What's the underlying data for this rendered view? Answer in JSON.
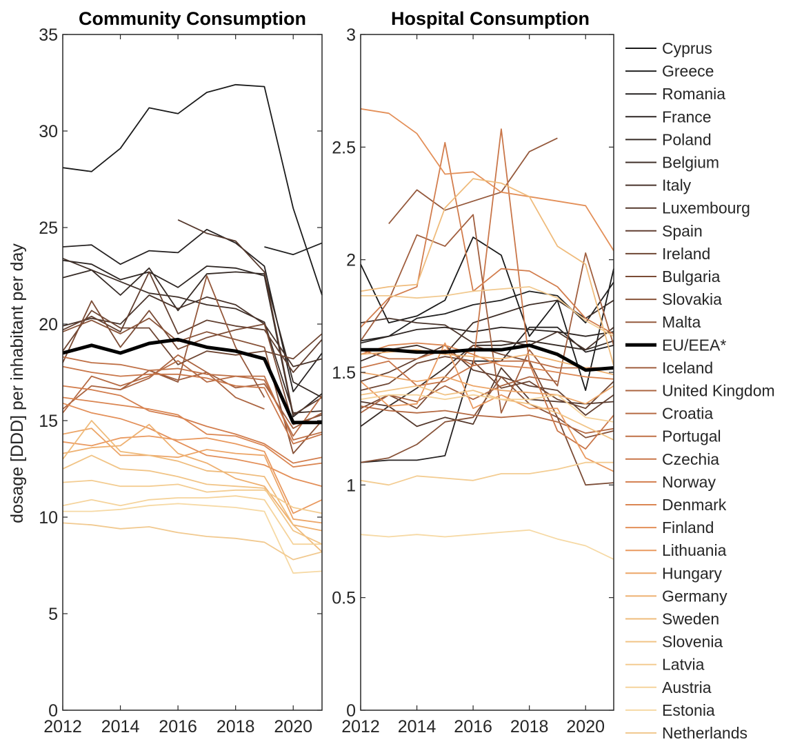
{
  "ylabel": "dosage [DDD] per inhabitant per day",
  "chart_data": [
    {
      "type": "line",
      "title": "Community Consumption",
      "xlabel": "",
      "ylabel": "dosage [DDD] per inhabitant per day",
      "x": [
        2012,
        2013,
        2014,
        2015,
        2016,
        2017,
        2018,
        2019,
        2020,
        2021
      ],
      "xlim": [
        2012,
        2021
      ],
      "ylim": [
        0,
        35
      ],
      "xticks": [
        2012,
        2014,
        2016,
        2018,
        2020
      ],
      "yticks": [
        0,
        5,
        10,
        15,
        20,
        25,
        30,
        35
      ],
      "grid": false,
      "series": [
        {
          "name": "Cyprus",
          "values": [
            28.1,
            27.9,
            29.1,
            31.2,
            30.9,
            32.0,
            32.4,
            32.3,
            26.0,
            21.5
          ]
        },
        {
          "name": "Greece",
          "values": [
            null,
            null,
            null,
            null,
            null,
            null,
            null,
            24.0,
            23.6,
            24.2
          ]
        },
        {
          "name": "Romania",
          "values": [
            24.0,
            24.1,
            23.1,
            23.8,
            23.7,
            24.9,
            24.2,
            23.0,
            16.5,
            18.5
          ]
        },
        {
          "name": "France",
          "values": [
            23.3,
            23.1,
            22.3,
            22.7,
            21.9,
            23.0,
            22.9,
            22.5,
            15.2,
            16.4
          ]
        },
        {
          "name": "Poland",
          "values": [
            22.4,
            22.8,
            21.5,
            22.9,
            20.7,
            22.6,
            22.7,
            22.6,
            17.0,
            16.2
          ]
        },
        {
          "name": "Belgium",
          "values": [
            23.4,
            22.8,
            22.2,
            21.6,
            21.4,
            21.0,
            20.8,
            20.1,
            15.4,
            15.5
          ]
        },
        {
          "name": "Italy",
          "values": [
            19.9,
            20.3,
            20.0,
            21.5,
            20.8,
            21.4,
            21.0,
            20.0,
            17.8,
            18.2
          ]
        },
        {
          "name": "Luxembourg",
          "values": [
            null,
            null,
            null,
            null,
            25.4,
            24.7,
            24.3,
            22.7,
            15.3,
            16.2
          ]
        },
        {
          "name": "Spain",
          "values": [
            19.7,
            20.4,
            19.6,
            22.7,
            19.5,
            20.2,
            19.9,
            19.7,
            17.5,
            19.2
          ]
        },
        {
          "name": "Ireland",
          "values": [
            18.6,
            20.7,
            19.8,
            19.8,
            17.9,
            18.6,
            18.4,
            18.6,
            18.2,
            19.5
          ]
        },
        {
          "name": "Bulgaria",
          "values": [
            18.0,
            21.2,
            18.8,
            20.7,
            18.7,
            19.3,
            19.7,
            20.0,
            14.8,
            15.3
          ]
        },
        {
          "name": "Slovakia",
          "values": [
            19.6,
            20.2,
            19.5,
            20.3,
            19.1,
            19.6,
            19.2,
            18.8,
            13.3,
            15.0
          ]
        },
        {
          "name": "Malta",
          "values": [
            null,
            null,
            null,
            17.6,
            17.0,
            22.5,
            18.8,
            16.2,
            null,
            null
          ]
        },
        {
          "name": "EU/EEA*",
          "values": [
            18.5,
            18.9,
            18.5,
            19.0,
            19.2,
            18.8,
            18.6,
            18.2,
            14.9,
            14.9
          ]
        },
        {
          "name": "Iceland",
          "values": [
            null,
            null,
            16.6,
            17.6,
            17.1,
            17.5,
            16.7,
            16.9,
            14.6,
            15.4
          ]
        },
        {
          "name": "United Kingdom",
          "values": [
            15.6,
            16.8,
            16.6,
            17.2,
            18.4,
            17.5,
            16.2,
            15.6,
            null,
            null
          ]
        },
        {
          "name": "Croatia",
          "values": [
            15.4,
            17.3,
            16.8,
            17.3,
            18.1,
            17.0,
            17.3,
            17.1,
            14.2,
            16.3
          ]
        },
        {
          "name": "Portugal",
          "values": [
            18.3,
            18.0,
            17.9,
            17.6,
            17.7,
            17.4,
            17.3,
            17.3,
            14.0,
            14.4
          ]
        },
        {
          "name": "Czechia",
          "values": [
            17.8,
            17.5,
            17.3,
            17.4,
            17.4,
            17.2,
            16.8,
            16.7,
            13.8,
            14.3
          ]
        },
        {
          "name": "Norway",
          "values": [
            16.8,
            16.6,
            16.3,
            15.5,
            15.2,
            14.7,
            14.3,
            13.8,
            12.8,
            13.1
          ]
        },
        {
          "name": "Denmark",
          "values": [
            16.2,
            16.0,
            15.8,
            15.6,
            15.3,
            14.3,
            14.2,
            13.7,
            12.6,
            12.8
          ]
        },
        {
          "name": "Finland",
          "values": [
            15.9,
            15.4,
            15.1,
            14.6,
            13.9,
            13.2,
            13.0,
            12.7,
            12.0,
            11.6
          ]
        },
        {
          "name": "Lithuania",
          "values": [
            13.9,
            13.7,
            14.1,
            14.2,
            14.0,
            14.1,
            13.8,
            13.4,
            10.2,
            10.9
          ]
        },
        {
          "name": "Hungary",
          "values": [
            14.3,
            14.6,
            13.2,
            13.2,
            13.1,
            13.5,
            13.3,
            13.2,
            9.9,
            9.7
          ]
        },
        {
          "name": "Germany",
          "values": [
            13.3,
            13.6,
            13.7,
            14.8,
            13.3,
            12.8,
            12.0,
            11.6,
            9.6,
            9.3
          ]
        },
        {
          "name": "Sweden",
          "values": [
            13.0,
            15.0,
            13.4,
            13.2,
            12.9,
            12.4,
            12.3,
            12.1,
            9.6,
            8.2
          ]
        },
        {
          "name": "Slovenia",
          "values": [
            12.5,
            13.2,
            12.5,
            12.4,
            12.1,
            11.7,
            11.6,
            11.5,
            9.3,
            8.6
          ]
        },
        {
          "name": "Latvia",
          "values": [
            11.8,
            11.9,
            11.6,
            11.6,
            11.7,
            11.3,
            11.4,
            11.4,
            10.5,
            10.2
          ]
        },
        {
          "name": "Austria",
          "values": [
            10.6,
            10.9,
            10.6,
            10.9,
            11.0,
            11.0,
            11.1,
            10.9,
            8.6,
            8.6
          ]
        },
        {
          "name": "Estonia",
          "values": [
            10.3,
            10.3,
            10.4,
            10.6,
            10.7,
            10.6,
            10.5,
            10.3,
            7.1,
            7.2
          ]
        },
        {
          "name": "Netherlands",
          "values": [
            9.7,
            9.6,
            9.4,
            9.5,
            9.2,
            9.0,
            8.9,
            8.7,
            7.8,
            8.2
          ]
        }
      ]
    },
    {
      "type": "line",
      "title": "Hospital Consumption",
      "xlabel": "",
      "ylabel": "",
      "x": [
        2012,
        2013,
        2014,
        2015,
        2016,
        2017,
        2018,
        2019,
        2020,
        2021
      ],
      "xlim": [
        2012,
        2021
      ],
      "ylim": [
        0,
        3
      ],
      "xticks": [
        2012,
        2014,
        2016,
        2018,
        2020
      ],
      "yticks": [
        0,
        0.5,
        1,
        1.5,
        2,
        2.5,
        3
      ],
      "grid": false,
      "series": [
        {
          "name": "Cyprus",
          "values": [
            1.98,
            1.72,
            1.75,
            1.82,
            2.1,
            2.02,
            1.66,
            1.82,
            1.42,
            1.96
          ]
        },
        {
          "name": "Greece",
          "values": [
            1.64,
            1.66,
            1.74,
            1.76,
            1.8,
            1.82,
            1.86,
            1.84,
            1.72,
            1.9
          ]
        },
        {
          "name": "Romania",
          "values": [
            1.1,
            1.11,
            1.11,
            1.13,
            1.55,
            1.55,
            1.7,
            1.7,
            1.59,
            1.62
          ]
        },
        {
          "name": "France",
          "values": [
            1.63,
            1.66,
            1.69,
            1.7,
            1.68,
            1.7,
            1.69,
            1.68,
            1.66,
            1.68
          ]
        },
        {
          "name": "Poland",
          "values": [
            1.26,
            1.35,
            1.43,
            1.52,
            1.62,
            1.62,
            1.64,
            1.62,
            1.6,
            1.64
          ]
        },
        {
          "name": "Belgium",
          "values": [
            1.55,
            1.6,
            1.62,
            1.58,
            1.72,
            1.76,
            1.8,
            1.82,
            1.74,
            1.82
          ]
        },
        {
          "name": "Italy",
          "values": [
            1.72,
            1.74,
            1.72,
            1.71,
            1.63,
            1.64,
            1.62,
            1.68,
            1.6,
            1.7
          ]
        },
        {
          "name": "Luxembourg",
          "values": [
            1.37,
            1.35,
            1.26,
            1.3,
            1.27,
            1.52,
            1.38,
            1.37,
            1.36,
            1.37
          ]
        },
        {
          "name": "Spain",
          "values": [
            1.46,
            1.5,
            1.56,
            1.62,
            1.51,
            1.48,
            1.44,
            1.42,
            1.31,
            1.4
          ]
        },
        {
          "name": "Ireland",
          "values": [
            1.42,
            1.45,
            1.54,
            1.57,
            1.55,
            1.43,
            1.46,
            1.38,
            1.34,
            1.46
          ]
        },
        {
          "name": "Bulgaria",
          "values": [
            1.34,
            1.4,
            1.34,
            1.48,
            1.62,
            1.58,
            1.55,
            1.3,
            1.0,
            1.01
          ]
        },
        {
          "name": "Slovakia",
          "values": [
            1.1,
            1.12,
            1.18,
            1.28,
            1.3,
            1.48,
            1.36,
            1.3,
            1.21,
            1.24
          ]
        },
        {
          "name": "Malta",
          "values": [
            null,
            2.16,
            2.31,
            2.22,
            2.26,
            2.3,
            2.48,
            2.54,
            null,
            null
          ]
        },
        {
          "name": "EU/EEA*",
          "values": [
            1.6,
            1.6,
            1.59,
            1.59,
            1.6,
            1.6,
            1.62,
            1.58,
            1.51,
            1.52
          ]
        },
        {
          "name": "Iceland",
          "values": [
            1.64,
            1.82,
            2.11,
            2.06,
            2.2,
            1.32,
            1.6,
            1.44,
            2.03,
            1.62
          ]
        },
        {
          "name": "United Kingdom",
          "values": [
            1.32,
            1.4,
            1.37,
            1.44,
            1.38,
            1.44,
            1.48,
            1.46,
            null,
            null
          ]
        },
        {
          "name": "Croatia",
          "values": [
            1.35,
            1.33,
            1.32,
            1.33,
            1.31,
            1.3,
            1.31,
            1.28,
            1.23,
            1.25
          ]
        },
        {
          "name": "Portugal",
          "values": [
            1.6,
            1.56,
            1.56,
            1.6,
            1.53,
            1.55,
            1.55,
            1.52,
            1.52,
            1.52
          ]
        },
        {
          "name": "Czechia",
          "values": [
            1.52,
            1.55,
            1.44,
            1.46,
            1.53,
            2.58,
            1.54,
            1.24,
            1.16,
            1.31
          ]
        },
        {
          "name": "Norway",
          "values": [
            1.7,
            1.83,
            1.88,
            2.52,
            1.86,
            1.96,
            1.95,
            1.88,
            1.74,
            1.67
          ]
        },
        {
          "name": "Denmark",
          "values": [
            1.58,
            1.62,
            1.63,
            1.62,
            1.58,
            1.53,
            1.52,
            1.5,
            1.48,
            1.47
          ]
        },
        {
          "name": "Finland",
          "values": [
            2.67,
            2.65,
            2.56,
            2.38,
            2.39,
            2.3,
            2.28,
            2.26,
            2.24,
            2.04
          ]
        },
        {
          "name": "Lithuania",
          "values": [
            1.46,
            1.35,
            1.36,
            1.63,
            1.34,
            1.4,
            1.34,
            1.34,
            1.12,
            1.06
          ]
        },
        {
          "name": "Hungary",
          "values": [
            1.5,
            1.48,
            1.46,
            1.48,
            1.44,
            1.42,
            1.41,
            1.4,
            1.36,
            1.44
          ]
        },
        {
          "name": "Germany",
          "values": [
            1.58,
            1.59,
            1.6,
            1.58,
            1.57,
            1.56,
            1.58,
            1.55,
            1.52,
            1.49
          ]
        },
        {
          "name": "Sweden",
          "values": [
            1.86,
            1.88,
            1.89,
            2.23,
            2.36,
            2.34,
            2.28,
            2.06,
            1.98,
            1.53
          ]
        },
        {
          "name": "Slovenia",
          "values": [
            1.4,
            1.42,
            1.44,
            1.4,
            1.42,
            1.38,
            1.36,
            1.32,
            1.26,
            1.2
          ]
        },
        {
          "name": "Latvia",
          "values": [
            1.02,
            1.0,
            1.04,
            1.03,
            1.02,
            1.05,
            1.05,
            1.07,
            1.1,
            1.1
          ]
        },
        {
          "name": "Austria",
          "values": [
            1.38,
            1.4,
            1.4,
            1.38,
            1.4,
            1.38,
            1.38,
            1.4,
            1.3,
            1.28
          ]
        },
        {
          "name": "Estonia",
          "values": [
            0.78,
            0.77,
            0.78,
            0.77,
            0.78,
            0.79,
            0.8,
            0.76,
            0.73,
            0.67
          ]
        },
        {
          "name": "Netherlands",
          "values": [
            1.84,
            1.84,
            1.83,
            1.84,
            1.86,
            1.87,
            1.88,
            1.83,
            1.73,
            1.66
          ]
        }
      ]
    }
  ],
  "legend": {
    "placement": "right",
    "colors": [
      "#1a1a1a",
      "#202020",
      "#262222",
      "#2e2623",
      "#352a25",
      "#3e2e27",
      "#48332a",
      "#55392d",
      "#613f30",
      "#6d4532",
      "#7a4b35",
      "#875238",
      "#94583b",
      "#000000",
      "#a05e3e",
      "#ab6440",
      "#b56a43",
      "#bf7046",
      "#c97649",
      "#d27d4d",
      "#da8551",
      "#e38f58",
      "#e9995f",
      "#eca567",
      "#eeb070",
      "#efbb7b",
      "#f1c486",
      "#f3cc91",
      "#f5d39b",
      "#f6d9a4",
      "#f1c98f"
    ],
    "highlight": "EU/EEA*"
  }
}
